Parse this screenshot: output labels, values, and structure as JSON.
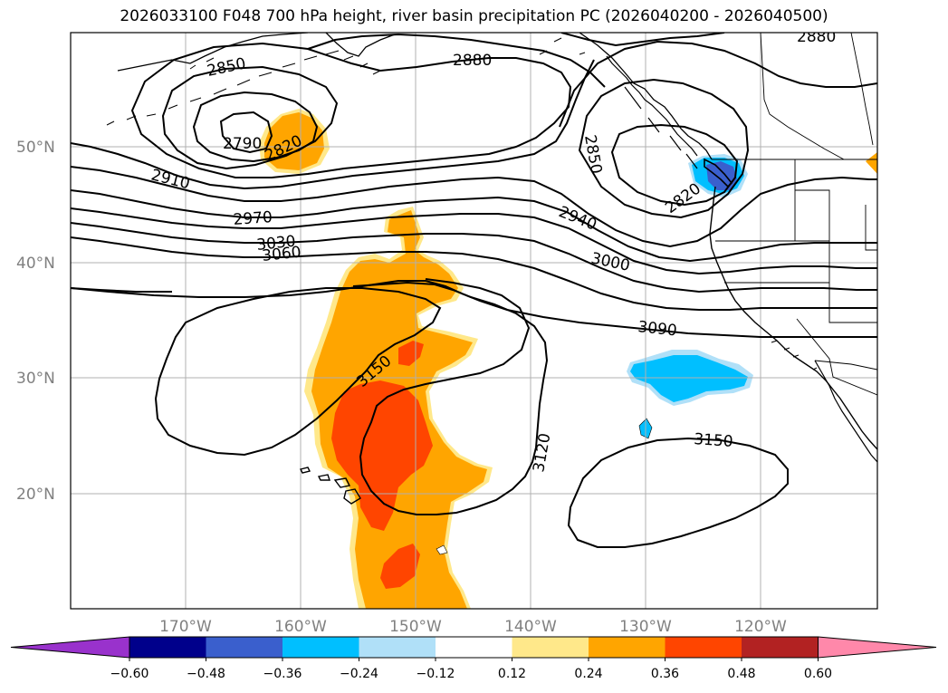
{
  "title": "2026033100 F048 700 hPa height, river basin precipitation PC (2026040200 - 2026040500)",
  "latitude_labels": [
    "50°N",
    "40°N",
    "30°N",
    "20°N"
  ],
  "longitude_labels": [
    "170°W",
    "160°W",
    "150°W",
    "140°W",
    "130°W",
    "120°W"
  ],
  "contour_labels": [
    "2850",
    "2880",
    "2880",
    "2790",
    "2820",
    "2850",
    "2820",
    "2910",
    "2940",
    "2970",
    "3030",
    "3060",
    "3000",
    "3090",
    "3150",
    "3120",
    "3150"
  ],
  "colorbar": {
    "tick_labels": [
      "−0.60",
      "−0.48",
      "−0.36",
      "−0.24",
      "−0.12",
      "0.12",
      "0.24",
      "0.36",
      "0.48",
      "0.60"
    ],
    "colors": [
      "#9932cc",
      "#00008b",
      "#3a5fcd",
      "#00bfff",
      "#b0e0f8",
      "#ffffff",
      "#ffe88a",
      "#ffa500",
      "#ff4500",
      "#b22222",
      "#ff88aa"
    ]
  },
  "colors": {
    "land_outline": "#000000",
    "grid": "#b0b0b0",
    "orange": "#ffa500",
    "red_orange": "#ff4500",
    "light_yellow": "#ffe88a",
    "sky_blue": "#00bfff",
    "light_blue": "#b0e0f8",
    "mid_blue": "#3a5fcd"
  }
}
